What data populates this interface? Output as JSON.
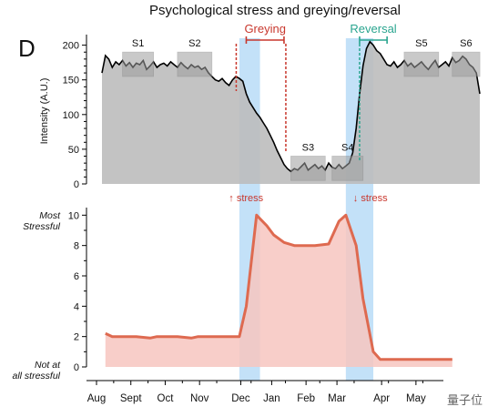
{
  "figure": {
    "title": "Psychological stress and greying/reversal",
    "panel_label": "D",
    "watermark": "量子位"
  },
  "colors": {
    "intensity_fill": "#bdbdbd",
    "intensity_line": "#000000",
    "stress_fill": "#f7c6c0",
    "stress_line": "#de6a50",
    "highlight_band": "#b9dcf7",
    "greying": "#c8372d",
    "reversal": "#2aa58f",
    "segment_box": "#9e9e9e"
  },
  "chart_data": [
    {
      "type": "area",
      "name": "intensity",
      "ylabel": "Intensity (A.U.)",
      "ylim": [
        0,
        210
      ],
      "yticks": [
        0,
        50,
        100,
        150,
        200
      ],
      "x_domain": [
        0,
        11
      ],
      "x": [
        0.0,
        0.1,
        0.2,
        0.3,
        0.4,
        0.5,
        0.6,
        0.7,
        0.8,
        0.9,
        1.0,
        1.1,
        1.2,
        1.3,
        1.4,
        1.5,
        1.6,
        1.7,
        1.8,
        1.9,
        2.0,
        2.1,
        2.2,
        2.3,
        2.4,
        2.5,
        2.6,
        2.7,
        2.8,
        2.9,
        3.0,
        3.1,
        3.2,
        3.3,
        3.4,
        3.5,
        3.6,
        3.7,
        3.8,
        3.9,
        4.0,
        4.1,
        4.2,
        4.3,
        4.4,
        4.5,
        4.6,
        4.7,
        4.8,
        4.9,
        5.0,
        5.1,
        5.2,
        5.3,
        5.4,
        5.5,
        5.6,
        5.7,
        5.8,
        5.9,
        6.0,
        6.1,
        6.2,
        6.3,
        6.4,
        6.5,
        6.6,
        6.7,
        6.8,
        6.9,
        7.0,
        7.1,
        7.2,
        7.3,
        7.4,
        7.5,
        7.6,
        7.7,
        7.8,
        7.9,
        8.0,
        8.1,
        8.2,
        8.3,
        8.4,
        8.5,
        8.6,
        8.7,
        8.8,
        8.9,
        9.0,
        9.1,
        9.2,
        9.3,
        9.4,
        9.5,
        9.6,
        9.7,
        9.8,
        9.9,
        10.0,
        10.1,
        10.2,
        10.3,
        10.4,
        10.5,
        10.6,
        10.7,
        10.8,
        10.9,
        11.0
      ],
      "y": [
        160,
        185,
        180,
        168,
        176,
        172,
        178,
        170,
        175,
        168,
        174,
        172,
        178,
        165,
        170,
        176,
        168,
        172,
        174,
        170,
        176,
        172,
        168,
        175,
        170,
        166,
        172,
        168,
        170,
        165,
        168,
        160,
        155,
        150,
        148,
        152,
        146,
        142,
        150,
        155,
        152,
        148,
        130,
        118,
        110,
        102,
        96,
        88,
        80,
        70,
        60,
        48,
        38,
        28,
        22,
        18,
        22,
        20,
        25,
        30,
        20,
        24,
        28,
        22,
        26,
        20,
        30,
        24,
        22,
        28,
        22,
        26,
        30,
        45,
        80,
        130,
        170,
        195,
        205,
        200,
        192,
        188,
        180,
        172,
        170,
        176,
        168,
        172,
        178,
        170,
        174,
        168,
        172,
        176,
        170,
        165,
        172,
        178,
        168,
        172,
        176,
        170,
        182,
        175,
        178,
        184,
        180,
        172,
        168,
        160,
        130
      ],
      "segments": [
        {
          "label": "S1",
          "x0": 0.6,
          "x1": 1.5,
          "y0": 155,
          "y1": 190
        },
        {
          "label": "S2",
          "x0": 2.2,
          "x1": 3.2,
          "y0": 155,
          "y1": 190
        },
        {
          "label": "S3",
          "x0": 5.5,
          "x1": 6.5,
          "y0": 5,
          "y1": 40
        },
        {
          "label": "S4",
          "x0": 6.7,
          "x1": 7.6,
          "y0": 5,
          "y1": 40
        },
        {
          "label": "S5",
          "x0": 8.8,
          "x1": 9.8,
          "y0": 155,
          "y1": 190
        },
        {
          "label": "S6",
          "x0": 10.2,
          "x1": 11.0,
          "y0": 155,
          "y1": 190
        }
      ],
      "annotations": [
        {
          "label": "Greying",
          "x0": 4.2,
          "x1": 5.3
        },
        {
          "label": "Reversal",
          "x0": 7.5,
          "x1": 8.3
        }
      ]
    },
    {
      "type": "area",
      "name": "stress",
      "ylabel_top": "Most Stressful",
      "ylabel_bottom": "Not at all stressful",
      "ylim": [
        0,
        10.5
      ],
      "yticks": [
        0,
        2,
        4,
        6,
        8,
        10
      ],
      "x_domain": [
        0,
        11
      ],
      "x": [
        0.1,
        0.3,
        1.0,
        1.4,
        1.6,
        2.2,
        2.6,
        2.8,
        3.4,
        4.0,
        4.2,
        4.5,
        4.8,
        5.0,
        5.3,
        5.6,
        6.2,
        6.6,
        6.9,
        7.1,
        7.4,
        7.6,
        7.9,
        8.1,
        10.2
      ],
      "y": [
        2.2,
        2.0,
        2.0,
        1.9,
        2.0,
        2.0,
        1.9,
        2.0,
        2.0,
        2.0,
        4.0,
        10.0,
        9.3,
        8.7,
        8.2,
        8.0,
        8.0,
        8.1,
        9.6,
        10.0,
        8.0,
        4.5,
        1.0,
        0.5,
        0.5
      ],
      "annotations": [
        {
          "label": "↑ stress",
          "x": 4.3
        },
        {
          "label": "↓ stress",
          "x": 7.6
        }
      ]
    }
  ],
  "x_axis": {
    "months": [
      "Aug",
      "Sept",
      "Oct",
      "Nov",
      "Dec",
      "Jan",
      "Feb",
      "Mar",
      "Apr",
      "May"
    ],
    "month_positions": [
      0,
      1.0,
      2.0,
      3.0,
      4.2,
      5.1,
      6.1,
      7.0,
      8.3,
      9.3
    ]
  },
  "highlight_bands": [
    {
      "x0": 4.0,
      "x1": 4.6
    },
    {
      "x0": 7.1,
      "x1": 7.9
    }
  ]
}
